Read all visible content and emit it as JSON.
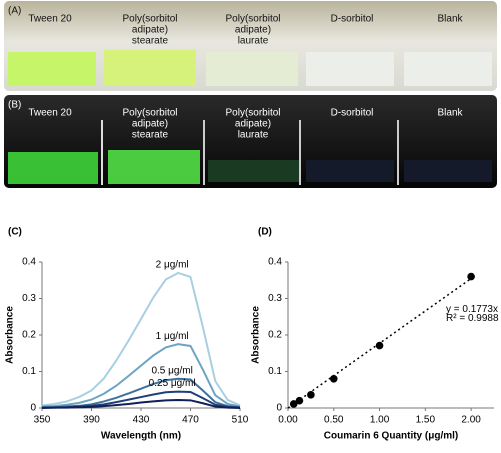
{
  "panel_A": {
    "label": "(A)",
    "samples": [
      [
        "Tween 20"
      ],
      [
        "Poly(sorbitol",
        "adipate)",
        "stearate"
      ],
      [
        "Poly(sorbitol",
        "adipate)",
        "laurate"
      ],
      [
        "D-sorbitol"
      ],
      [
        "Blank"
      ]
    ]
  },
  "panel_B": {
    "label": "(B)",
    "samples": [
      [
        "Tween 20"
      ],
      [
        "Poly(sorbitol",
        "adipate)",
        "stearate"
      ],
      [
        "Poly(sorbitol",
        "adipate)",
        "laurate"
      ],
      [
        "D-sorbitol"
      ],
      [
        "Blank"
      ]
    ]
  },
  "chart_data": [
    {
      "type": "line",
      "panel": "(C)",
      "x_label": "Wavelength (nm)",
      "y_label": "Absorbance",
      "x": [
        350,
        360,
        370,
        380,
        390,
        400,
        410,
        420,
        430,
        440,
        450,
        460,
        470,
        480,
        490,
        500,
        510
      ],
      "xlim": [
        350,
        510
      ],
      "xticks": [
        350,
        390,
        430,
        470,
        510
      ],
      "ylim": [
        0,
        0.4
      ],
      "yticks": [
        0,
        0.1,
        0.2,
        0.3,
        0.4
      ],
      "series": [
        {
          "name": "2 μg/ml",
          "color": "#a9cfe2",
          "values": [
            0.007,
            0.011,
            0.018,
            0.03,
            0.048,
            0.081,
            0.13,
            0.185,
            0.244,
            0.303,
            0.352,
            0.37,
            0.359,
            0.222,
            0.074,
            0.022,
            0.007
          ]
        },
        {
          "name": "1 μg/ml",
          "color": "#6ea3c4",
          "values": [
            0.004,
            0.005,
            0.009,
            0.014,
            0.023,
            0.039,
            0.061,
            0.088,
            0.116,
            0.144,
            0.166,
            0.175,
            0.17,
            0.105,
            0.035,
            0.011,
            0.004
          ]
        },
        {
          "name": "0.5 μg/ml",
          "color": "#3e719c",
          "values": [
            0.002,
            0.002,
            0.004,
            0.006,
            0.01,
            0.018,
            0.028,
            0.04,
            0.053,
            0.066,
            0.076,
            0.08,
            0.078,
            0.048,
            0.016,
            0.005,
            0.002
          ]
        },
        {
          "name": "0.25 μg/ml",
          "color": "#203f78",
          "values": [
            0.001,
            0.001,
            0.002,
            0.004,
            0.006,
            0.01,
            0.016,
            0.023,
            0.03,
            0.037,
            0.043,
            0.045,
            0.044,
            0.027,
            0.009,
            0.003,
            0.001
          ]
        },
        {
          "color": "#101f58",
          "values": [
            0,
            0.001,
            0.001,
            0.002,
            0.003,
            0.005,
            0.008,
            0.011,
            0.015,
            0.018,
            0.021,
            0.022,
            0.021,
            0.013,
            0.004,
            0.001,
            0
          ]
        }
      ]
    },
    {
      "type": "scatter",
      "panel": "(D)",
      "x_label": "Coumarin 6 Quantity (μg/ml)",
      "y_label": "Absorbance",
      "x": [
        0.0625,
        0.125,
        0.25,
        0.5,
        1,
        2
      ],
      "values": [
        0.011,
        0.02,
        0.036,
        0.08,
        0.171,
        0.36
      ],
      "color": "#000000",
      "xlim": [
        0,
        2.25
      ],
      "xticks": [
        {
          "value": 0,
          "label": "0.00"
        },
        {
          "value": 0.5,
          "label": "0.50"
        },
        {
          "value": 1,
          "label": "1.00"
        },
        {
          "value": 1.5,
          "label": "1.50"
        },
        {
          "value": 2,
          "label": "2.00"
        }
      ],
      "ylim": [
        0,
        0.4
      ],
      "yticks": [
        0,
        0.1,
        0.2,
        0.3,
        0.4
      ],
      "trendline": {
        "slope": 0.1773,
        "label": "y = 0.1773x",
        "r2_label": "R² = 0.9988"
      }
    }
  ]
}
